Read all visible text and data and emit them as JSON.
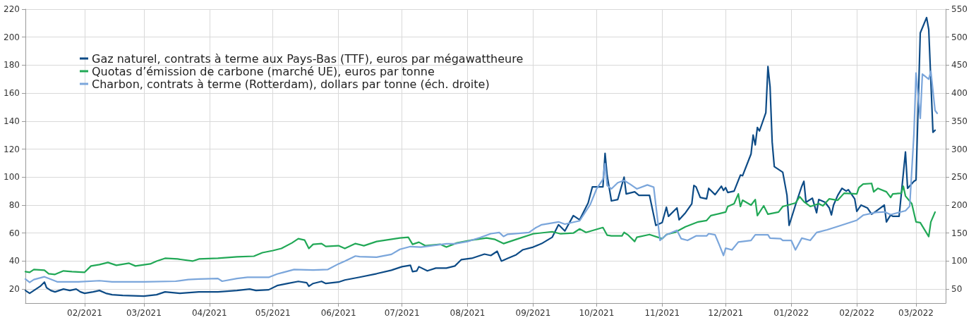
{
  "chart_data": {
    "type": "line",
    "xlim": [
      "2021-01-04",
      "2022-03-15"
    ],
    "xticks": [
      {
        "value": "2021-02-01",
        "label": "02/2021"
      },
      {
        "value": "2021-03-01",
        "label": "03/2021"
      },
      {
        "value": "2021-04-01",
        "label": "04/2021"
      },
      {
        "value": "2021-05-01",
        "label": "05/2021"
      },
      {
        "value": "2021-06-01",
        "label": "06/2021"
      },
      {
        "value": "2021-07-01",
        "label": "07/2021"
      },
      {
        "value": "2021-08-01",
        "label": "08/2021"
      },
      {
        "value": "2021-09-01",
        "label": "09/2021"
      },
      {
        "value": "2021-10-01",
        "label": "10/2021"
      },
      {
        "value": "2021-11-01",
        "label": "11/2021"
      },
      {
        "value": "2021-12-01",
        "label": "12/2021"
      },
      {
        "value": "2022-01-01",
        "label": "01/2022"
      },
      {
        "value": "2022-02-01",
        "label": "02/2022"
      },
      {
        "value": "2022-03-01",
        "label": "03/2022"
      }
    ],
    "ylim": [
      10,
      220
    ],
    "yticks": [
      20,
      40,
      60,
      80,
      100,
      120,
      140,
      160,
      180,
      200,
      220
    ],
    "y2lim": [
      25,
      550
    ],
    "y2ticks": [
      50,
      100,
      150,
      200,
      250,
      300,
      350,
      400,
      450,
      500,
      550
    ],
    "grid": true,
    "legend": "top left",
    "marker": "none",
    "line_style": "solid",
    "series": [
      {
        "name": "Gaz naturel, contrats à terme aux Pays-Bas (TTF), euros par mégawattheure",
        "color": "#0d4b86",
        "x": [
          "2021-01-04",
          "2021-01-06",
          "2021-01-08",
          "2021-01-11",
          "2021-01-13",
          "2021-01-14",
          "2021-01-16",
          "2021-01-18",
          "2021-01-20",
          "2021-01-22",
          "2021-01-25",
          "2021-01-28",
          "2021-01-30",
          "2021-02-01",
          "2021-02-05",
          "2021-02-08",
          "2021-02-11",
          "2021-02-14",
          "2021-02-19",
          "2021-03-01",
          "2021-03-07",
          "2021-03-11",
          "2021-03-18",
          "2021-03-27",
          "2021-04-05",
          "2021-04-14",
          "2021-04-20",
          "2021-04-23",
          "2021-04-29",
          "2021-05-03",
          "2021-05-08",
          "2021-05-13",
          "2021-05-17",
          "2021-05-18",
          "2021-05-20",
          "2021-05-24",
          "2021-05-26",
          "2021-06-01",
          "2021-06-04",
          "2021-06-11",
          "2021-06-19",
          "2021-06-26",
          "2021-07-01",
          "2021-07-05",
          "2021-07-06",
          "2021-07-08",
          "2021-07-09",
          "2021-07-13",
          "2021-07-17",
          "2021-07-22",
          "2021-07-26",
          "2021-07-29",
          "2021-08-03",
          "2021-08-09",
          "2021-08-12",
          "2021-08-15",
          "2021-08-17",
          "2021-08-20",
          "2021-08-24",
          "2021-08-27",
          "2021-09-01",
          "2021-09-05",
          "2021-09-10",
          "2021-09-13",
          "2021-09-16",
          "2021-09-20",
          "2021-09-23",
          "2021-09-27",
          "2021-09-29",
          "2021-10-04",
          "2021-10-05",
          "2021-10-06",
          "2021-10-08",
          "2021-10-11",
          "2021-10-14",
          "2021-10-15",
          "2021-10-19",
          "2021-10-21",
          "2021-10-26",
          "2021-10-29",
          "2021-11-01",
          "2021-11-03",
          "2021-11-04",
          "2021-11-08",
          "2021-11-09",
          "2021-11-12",
          "2021-11-15",
          "2021-11-16",
          "2021-11-17",
          "2021-11-19",
          "2021-11-22",
          "2021-11-23",
          "2021-11-26",
          "2021-11-29",
          "2021-11-30",
          "2021-12-01",
          "2021-12-02",
          "2021-12-05",
          "2021-12-08",
          "2021-12-09",
          "2021-12-13",
          "2021-12-14",
          "2021-12-15",
          "2021-12-16",
          "2021-12-17",
          "2021-12-20",
          "2021-12-21",
          "2021-12-22",
          "2021-12-23",
          "2021-12-24",
          "2021-12-28",
          "2021-12-30",
          "2021-12-31",
          "2022-01-03",
          "2022-01-06",
          "2022-01-07",
          "2022-01-08",
          "2022-01-11",
          "2022-01-13",
          "2022-01-14",
          "2022-01-17",
          "2022-01-19",
          "2022-01-20",
          "2022-01-21",
          "2022-01-23",
          "2022-01-25",
          "2022-01-27",
          "2022-01-28",
          "2022-01-31",
          "2022-02-01",
          "2022-02-03",
          "2022-02-06",
          "2022-02-08",
          "2022-02-10",
          "2022-02-14",
          "2022-02-15",
          "2022-02-17",
          "2022-02-18",
          "2022-02-21",
          "2022-02-24",
          "2022-02-25",
          "2022-02-28",
          "2022-03-01",
          "2022-03-03",
          "2022-03-06",
          "2022-03-07",
          "2022-03-09",
          "2022-03-10"
        ],
        "values": [
          19,
          17,
          19,
          22,
          25,
          21,
          19,
          18,
          19,
          20,
          19,
          20,
          18,
          17,
          18,
          19,
          17,
          16,
          15.5,
          15,
          16,
          18,
          17,
          18,
          18,
          19,
          20,
          19,
          19.5,
          22.5,
          24,
          25.5,
          24.5,
          22,
          24,
          25.5,
          24,
          25,
          26.5,
          28.5,
          31,
          33.5,
          36,
          37,
          32.5,
          33,
          36,
          33,
          35,
          35,
          36.5,
          41,
          42,
          45,
          44,
          47,
          40,
          42,
          44.5,
          48,
          50,
          52.5,
          57,
          66,
          61.5,
          72.5,
          69.5,
          81.5,
          93,
          93,
          117,
          101,
          83,
          84,
          100,
          88,
          89.5,
          87,
          87,
          65.5,
          67.5,
          78.5,
          72,
          78,
          69.5,
          74.5,
          81,
          94,
          93,
          85.5,
          84.5,
          92,
          87.5,
          93.5,
          90.5,
          92.5,
          89,
          90,
          101.5,
          101,
          116.5,
          130,
          123,
          135.5,
          133,
          146,
          179,
          164.5,
          125,
          107.5,
          103.5,
          87,
          65.5,
          80,
          93.5,
          97,
          82,
          85,
          74.5,
          84,
          82,
          78,
          73,
          80,
          87,
          92,
          90,
          91,
          84.5,
          75.5,
          80,
          78,
          73.5,
          75.5,
          80,
          68,
          73,
          72,
          72,
          118,
          92,
          97,
          98,
          203,
          214,
          205.5,
          132,
          133.5
        ]
      },
      {
        "name": "Quotas d’émission de carbone (marché UE), euros par tonne",
        "color": "#21a856",
        "x": [
          "2021-01-04",
          "2021-01-06",
          "2021-01-08",
          "2021-01-13",
          "2021-01-15",
          "2021-01-18",
          "2021-01-22",
          "2021-01-26",
          "2021-02-01",
          "2021-02-04",
          "2021-02-08",
          "2021-02-12",
          "2021-02-16",
          "2021-02-22",
          "2021-02-25",
          "2021-03-04",
          "2021-03-07",
          "2021-03-11",
          "2021-03-17",
          "2021-03-24",
          "2021-03-27",
          "2021-04-05",
          "2021-04-14",
          "2021-04-22",
          "2021-04-26",
          "2021-05-01",
          "2021-05-05",
          "2021-05-10",
          "2021-05-13",
          "2021-05-16",
          "2021-05-18",
          "2021-05-20",
          "2021-05-24",
          "2021-05-26",
          "2021-06-01",
          "2021-06-04",
          "2021-06-09",
          "2021-06-13",
          "2021-06-19",
          "2021-06-30",
          "2021-07-04",
          "2021-07-06",
          "2021-07-09",
          "2021-07-12",
          "2021-07-19",
          "2021-07-22",
          "2021-07-27",
          "2021-08-03",
          "2021-08-10",
          "2021-08-14",
          "2021-08-18",
          "2021-08-24",
          "2021-09-01",
          "2021-09-10",
          "2021-09-14",
          "2021-09-20",
          "2021-09-23",
          "2021-09-26",
          "2021-10-04",
          "2021-10-06",
          "2021-10-08",
          "2021-10-13",
          "2021-10-14",
          "2021-10-16",
          "2021-10-19",
          "2021-10-20",
          "2021-10-26",
          "2021-11-01",
          "2021-11-03",
          "2021-11-07",
          "2021-11-12",
          "2021-11-18",
          "2021-11-22",
          "2021-11-24",
          "2021-12-01",
          "2021-12-02",
          "2021-12-05",
          "2021-12-07",
          "2021-12-08",
          "2021-12-09",
          "2021-12-13",
          "2021-12-15",
          "2021-12-16",
          "2021-12-19",
          "2021-12-21",
          "2021-12-26",
          "2021-12-28",
          "2022-01-03",
          "2022-01-05",
          "2022-01-07",
          "2022-01-10",
          "2022-01-14",
          "2022-01-16",
          "2022-01-19",
          "2022-01-23",
          "2022-01-26",
          "2022-02-01",
          "2022-02-02",
          "2022-02-04",
          "2022-02-08",
          "2022-02-09",
          "2022-02-11",
          "2022-02-15",
          "2022-02-17",
          "2022-02-18",
          "2022-02-22",
          "2022-02-23",
          "2022-02-24",
          "2022-02-27",
          "2022-03-01",
          "2022-03-03",
          "2022-03-07",
          "2022-03-08",
          "2022-03-10"
        ],
        "values": [
          32.5,
          32,
          34,
          33.5,
          31,
          30.5,
          33,
          32.5,
          32,
          36.5,
          37.5,
          39,
          37,
          38.5,
          36.5,
          38,
          40,
          42,
          41.5,
          40,
          41.5,
          42,
          43,
          43.5,
          46,
          47.5,
          49,
          53,
          56,
          55,
          49,
          52,
          52.5,
          50.5,
          51,
          49,
          52.5,
          51,
          54,
          56.5,
          57,
          52,
          53.5,
          51,
          52,
          50,
          53,
          55,
          56.5,
          55.5,
          52.5,
          55.5,
          59.5,
          61,
          59.5,
          60,
          63,
          60.5,
          64,
          58.5,
          58,
          58,
          60.5,
          58.5,
          54,
          57,
          59,
          56,
          59,
          60.5,
          64.5,
          68,
          69,
          72.5,
          75,
          79,
          81,
          88,
          79,
          83.5,
          80,
          84,
          72.5,
          79.5,
          73.5,
          75,
          79,
          81.5,
          86,
          82.5,
          79,
          81,
          79.5,
          84.5,
          83.5,
          88.5,
          88,
          92.5,
          95,
          95.5,
          89.5,
          92,
          89.5,
          85.5,
          88,
          88.5,
          93.5,
          86.5,
          81,
          68,
          67.5,
          57.5,
          68,
          75
        ]
      },
      {
        "name": "Charbon, contrats à terme (Rotterdam), dollars par tonne (éch. droite)",
        "color": "#7ba6db",
        "axis": "y2",
        "x": [
          "2021-01-04",
          "2021-01-06",
          "2021-01-08",
          "2021-01-13",
          "2021-01-15",
          "2021-01-19",
          "2021-01-29",
          "2021-02-08",
          "2021-02-14",
          "2021-03-01",
          "2021-03-16",
          "2021-03-22",
          "2021-03-27",
          "2021-04-05",
          "2021-04-07",
          "2021-04-14",
          "2021-04-19",
          "2021-04-29",
          "2021-05-03",
          "2021-05-06",
          "2021-05-11",
          "2021-05-20",
          "2021-05-27",
          "2021-06-01",
          "2021-06-04",
          "2021-06-09",
          "2021-06-11",
          "2021-06-19",
          "2021-06-26",
          "2021-06-30",
          "2021-07-05",
          "2021-07-10",
          "2021-07-22",
          "2021-07-26",
          "2021-08-01",
          "2021-08-07",
          "2021-08-12",
          "2021-08-16",
          "2021-08-18",
          "2021-08-20",
          "2021-08-30",
          "2021-09-02",
          "2021-09-05",
          "2021-09-13",
          "2021-09-16",
          "2021-09-23",
          "2021-09-28",
          "2021-10-01",
          "2021-10-04",
          "2021-10-05",
          "2021-10-06",
          "2021-10-08",
          "2021-10-11",
          "2021-10-14",
          "2021-10-17",
          "2021-10-20",
          "2021-10-25",
          "2021-10-28",
          "2021-10-31",
          "2021-11-03",
          "2021-11-08",
          "2021-11-10",
          "2021-11-13",
          "2021-11-17",
          "2021-11-22",
          "2021-11-23",
          "2021-11-26",
          "2021-11-28",
          "2021-11-30",
          "2021-12-01",
          "2021-12-04",
          "2021-12-07",
          "2021-12-13",
          "2021-12-15",
          "2021-12-21",
          "2021-12-22",
          "2021-12-27",
          "2021-12-28",
          "2022-01-01",
          "2022-01-03",
          "2022-01-06",
          "2022-01-10",
          "2022-01-13",
          "2022-01-18",
          "2022-01-23",
          "2022-02-01",
          "2022-02-04",
          "2022-02-10",
          "2022-02-14",
          "2022-02-17",
          "2022-02-24",
          "2022-02-26",
          "2022-02-28",
          "2022-03-01",
          "2022-03-03",
          "2022-03-04",
          "2022-03-07",
          "2022-03-08",
          "2022-03-10",
          "2022-03-11"
        ],
        "values": [
          68,
          62,
          67,
          72,
          69,
          63,
          63,
          65,
          63,
          63,
          64,
          67,
          68,
          69,
          64,
          69,
          71,
          71,
          77,
          80,
          85,
          84,
          85,
          95,
          100,
          109,
          108,
          107,
          112,
          121,
          126,
          125,
          131,
          131,
          135,
          142,
          149,
          151,
          144,
          148,
          151,
          159,
          165,
          170,
          166,
          172,
          201,
          229,
          246,
          274,
          235,
          229,
          240,
          244,
          237,
          229,
          236,
          232,
          137,
          147,
          155,
          140,
          137,
          145,
          145,
          149,
          147,
          129,
          110,
          123,
          120,
          134,
          137,
          147,
          147,
          141,
          140,
          137,
          137,
          120,
          141,
          137,
          151,
          156,
          162,
          173,
          182,
          187,
          188,
          183,
          190,
          198,
          327,
          436,
          355,
          434,
          425,
          439,
          369,
          364
        ]
      }
    ]
  }
}
